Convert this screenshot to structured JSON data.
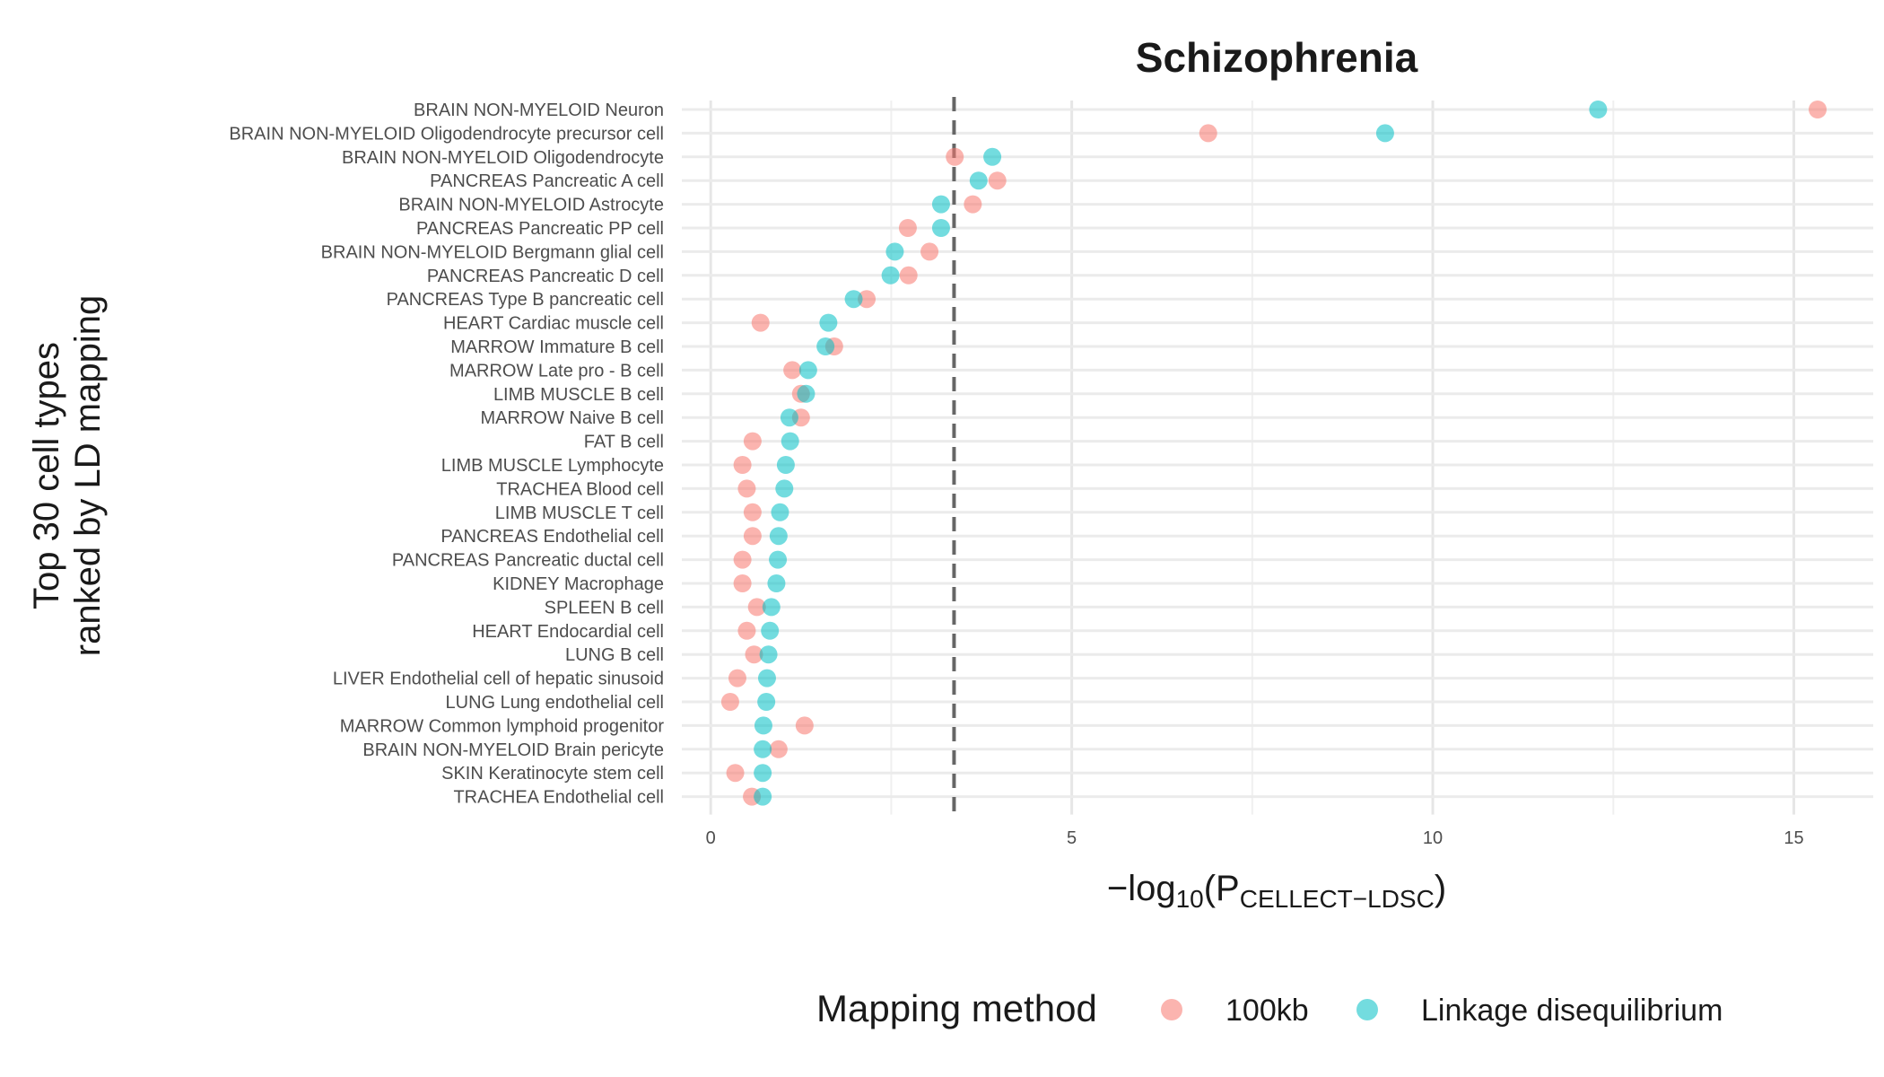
{
  "chart_data": {
    "type": "scatter",
    "title": "Schizophrenia",
    "xlabel_prefix": "−log",
    "xlabel_sub1": "10",
    "xlabel_mid": "(P",
    "xlabel_sub2": "CELLECT−LDSC",
    "xlabel_suffix": ")",
    "ylabel_line1": "Top 30 cell types",
    "ylabel_line2": "ranked by LD mapping",
    "xlim": [
      -0.4,
      16.1
    ],
    "xticks": [
      0,
      5,
      10,
      15
    ],
    "grid": true,
    "legend_placement": "bottom",
    "legend_title": "Mapping method",
    "threshold_x": 3.37,
    "categories": [
      "BRAIN NON-MYELOID Neuron",
      "BRAIN NON-MYELOID Oligodendrocyte precursor cell",
      "BRAIN NON-MYELOID Oligodendrocyte",
      "PANCREAS Pancreatic A cell",
      "BRAIN NON-MYELOID Astrocyte",
      "PANCREAS Pancreatic PP cell",
      "BRAIN NON-MYELOID Bergmann glial cell",
      "PANCREAS Pancreatic D cell",
      "PANCREAS Type B pancreatic cell",
      "HEART Cardiac muscle cell",
      "MARROW Immature B cell",
      "MARROW Late pro - B cell",
      "LIMB MUSCLE B cell",
      "MARROW Naive B cell",
      "FAT B cell",
      "LIMB MUSCLE Lymphocyte",
      "TRACHEA Blood cell",
      "LIMB MUSCLE T cell",
      "PANCREAS Endothelial cell",
      "PANCREAS Pancreatic ductal cell",
      "KIDNEY Macrophage",
      "SPLEEN B cell",
      "HEART Endocardial cell",
      "LUNG B cell",
      "LIVER Endothelial cell of hepatic sinusoid",
      "LUNG Lung endothelial cell",
      "MARROW Common lymphoid progenitor",
      "BRAIN NON-MYELOID Brain pericyte",
      "SKIN Keratinocyte stem cell",
      "TRACHEA Endothelial cell"
    ],
    "series": [
      {
        "name": "100kb",
        "color": "#F8766D",
        "values": [
          15.33,
          6.89,
          3.38,
          3.97,
          3.63,
          2.73,
          3.03,
          2.74,
          2.16,
          0.69,
          1.71,
          1.13,
          1.25,
          1.25,
          0.58,
          0.44,
          0.5,
          0.58,
          0.58,
          0.44,
          0.44,
          0.64,
          0.5,
          0.6,
          0.37,
          0.27,
          1.3,
          0.94,
          0.34,
          0.57
        ]
      },
      {
        "name": "Linkage disequilibrium",
        "color": "#00BFC4",
        "values": [
          12.29,
          9.34,
          3.9,
          3.71,
          3.19,
          3.19,
          2.55,
          2.49,
          1.98,
          1.63,
          1.59,
          1.35,
          1.32,
          1.09,
          1.1,
          1.04,
          1.02,
          0.96,
          0.94,
          0.93,
          0.91,
          0.84,
          0.82,
          0.8,
          0.78,
          0.77,
          0.73,
          0.72,
          0.72,
          0.72
        ]
      }
    ]
  }
}
